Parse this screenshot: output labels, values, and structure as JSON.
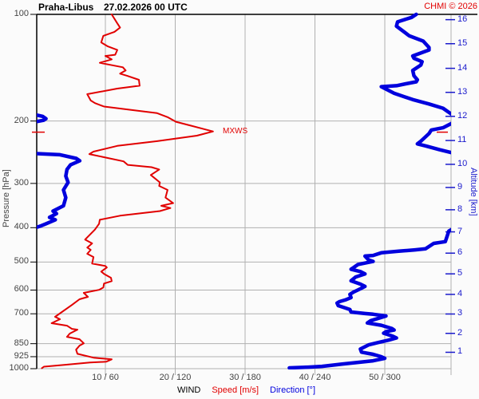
{
  "header": {
    "station": "Praha-Libus",
    "datetime": "27.02.2026 00 UTC",
    "copyright": "CHMI © 2026"
  },
  "axes": {
    "pressure": {
      "title": "Pressure [hPa]",
      "ticks": [
        100,
        200,
        300,
        400,
        500,
        600,
        700,
        850,
        925,
        1000
      ]
    },
    "altitude": {
      "title": "Altitude [km]",
      "ticks": [
        {
          "km": 1,
          "p": 899
        },
        {
          "km": 2,
          "p": 795
        },
        {
          "km": 3,
          "p": 701
        },
        {
          "km": 4,
          "p": 617
        },
        {
          "km": 5,
          "p": 540
        },
        {
          "km": 6,
          "p": 472
        },
        {
          "km": 7,
          "p": 411
        },
        {
          "km": 8,
          "p": 356
        },
        {
          "km": 9,
          "p": 308
        },
        {
          "km": 10,
          "p": 265
        },
        {
          "km": 11,
          "p": 227
        },
        {
          "km": 12,
          "p": 194
        },
        {
          "km": 13,
          "p": 166
        },
        {
          "km": 14,
          "p": 142
        },
        {
          "km": 15,
          "p": 121
        },
        {
          "km": 16,
          "p": 103.5
        }
      ]
    },
    "x": {
      "group_label": "WIND",
      "speed_label": "Speed [m/s]",
      "direction_label": "Direction [°]",
      "tick_labels": [
        "10 / 60",
        "20 / 120",
        "30 / 180",
        "40 / 240",
        "50 / 300"
      ],
      "speed_ticks": [
        10,
        20,
        30,
        40,
        50
      ],
      "direction_ticks": [
        60,
        120,
        180,
        240,
        300
      ]
    }
  },
  "annotations": {
    "mxws_label": "MXWS",
    "mxws_pressure": 215
  },
  "colors": {
    "speed": "#e10000",
    "direction": "#0000dd",
    "grid": "#b0b0b0",
    "axis": "#000000",
    "tick_text": "#444444",
    "altitude_text": "#1a1acc"
  },
  "chart_data": {
    "type": "line",
    "title": "Praha-Libus 27.02.2026 00 UTC",
    "ylabel": "Pressure [hPa]",
    "y2label": "Altitude [km]",
    "xlabel": "WIND Speed [m/s] / Direction [°]",
    "y_scale": "log",
    "ylim": [
      1000,
      100
    ],
    "speed_xlim": [
      0,
      59.5
    ],
    "direction_xlim": [
      0,
      357
    ],
    "legend_position": "bottom",
    "grid": true,
    "series": [
      {
        "name": "Speed [m/s]",
        "units": "m/s vs hPa",
        "points_p_v": [
          [
            100,
            10.9
          ],
          [
            106,
            11.7
          ],
          [
            109,
            12.1
          ],
          [
            112,
            11.3
          ],
          [
            115,
            9.7
          ],
          [
            120,
            9.4
          ],
          [
            123,
            10.3
          ],
          [
            126,
            11.7
          ],
          [
            130,
            11.4
          ],
          [
            131,
            10.0
          ],
          [
            134,
            10.9
          ],
          [
            137,
            9.2
          ],
          [
            141,
            12.5
          ],
          [
            144,
            12.9
          ],
          [
            147,
            12.1
          ],
          [
            149,
            13.1
          ],
          [
            153,
            14.8
          ],
          [
            159,
            14.9
          ],
          [
            162,
            11.7
          ],
          [
            168,
            7.4
          ],
          [
            175,
            7.9
          ],
          [
            178,
            8.5
          ],
          [
            182,
            9.8
          ],
          [
            186,
            13.7
          ],
          [
            190,
            17.4
          ],
          [
            195,
            18.9
          ],
          [
            201,
            20.1
          ],
          [
            206,
            22.2
          ],
          [
            214,
            25.4
          ],
          [
            220,
            23.1
          ],
          [
            228,
            17.4
          ],
          [
            235,
            11.7
          ],
          [
            244,
            8.3
          ],
          [
            248,
            7.7
          ],
          [
            253,
            9.8
          ],
          [
            260,
            12.6
          ],
          [
            266,
            13.2
          ],
          [
            270,
            16.6
          ],
          [
            274,
            17.7
          ],
          [
            284,
            16.5
          ],
          [
            298,
            17.8
          ],
          [
            305,
            17.7
          ],
          [
            313,
            18.9
          ],
          [
            329,
            18.6
          ],
          [
            341,
            19.7
          ],
          [
            347,
            18.0
          ],
          [
            352,
            19.3
          ],
          [
            359,
            17.8
          ],
          [
            370,
            12.1
          ],
          [
            380,
            9.2
          ],
          [
            390,
            9.1
          ],
          [
            405,
            8.5
          ],
          [
            432,
            7.1
          ],
          [
            443,
            8.1
          ],
          [
            455,
            7.4
          ],
          [
            462,
            7.9
          ],
          [
            474,
            7.4
          ],
          [
            484,
            8.3
          ],
          [
            505,
            8.1
          ],
          [
            513,
            10.0
          ],
          [
            518,
            10.2
          ],
          [
            532,
            9.4
          ],
          [
            540,
            9.8
          ],
          [
            554,
            10.8
          ],
          [
            566,
            10.9
          ],
          [
            575,
            9.8
          ],
          [
            590,
            9.7
          ],
          [
            599,
            9.1
          ],
          [
            611,
            6.9
          ],
          [
            627,
            7.5
          ],
          [
            637,
            6.3
          ],
          [
            661,
            5.2
          ],
          [
            714,
            2.8
          ],
          [
            725,
            3.5
          ],
          [
            744,
            2.3
          ],
          [
            756,
            4.5
          ],
          [
            772,
            5.2
          ],
          [
            776,
            6.0
          ],
          [
            796,
            4.9
          ],
          [
            813,
            4.5
          ],
          [
            826,
            6.3
          ],
          [
            848,
            6.9
          ],
          [
            861,
            6.3
          ],
          [
            884,
            5.8
          ],
          [
            908,
            6.0
          ],
          [
            931,
            8.3
          ],
          [
            941,
            10.9
          ],
          [
            956,
            10.1
          ],
          [
            961,
            7.8
          ],
          [
            976,
            4.1
          ],
          [
            987,
            1.2
          ],
          [
            997,
            0.9
          ]
        ]
      },
      {
        "name": "Direction [°]",
        "units": "deg vs hPa",
        "segments_p_deg": [
          [
            [
              100,
              327
            ],
            [
              102,
              323
            ],
            [
              105,
              311
            ],
            [
              108,
              310
            ],
            [
              113,
              318
            ],
            [
              115,
              321
            ],
            [
              119,
              333
            ],
            [
              124,
              338
            ],
            [
              126,
              338
            ],
            [
              131,
              324
            ],
            [
              133,
              325
            ],
            [
              136,
              332
            ],
            [
              139,
              331
            ],
            [
              144,
              324
            ],
            [
              149,
              325
            ],
            [
              153,
              328
            ],
            [
              155,
              327
            ],
            [
              157,
              318
            ],
            [
              159,
              310
            ],
            [
              160,
              297
            ],
            [
              167,
              308
            ],
            [
              174,
              324
            ],
            [
              179,
              338
            ],
            [
              184,
              350
            ],
            [
              191,
              357
            ],
            [
              192,
              360
            ]
          ],
          [
            [
              192,
              0
            ],
            [
              194,
              6
            ],
            [
              197,
              9
            ],
            [
              199,
              7
            ],
            [
              201,
              0
            ]
          ],
          [
            [
              201,
              360
            ],
            [
              209,
              350
            ],
            [
              212,
              340
            ],
            [
              217,
              338
            ],
            [
              228,
              331
            ],
            [
              232,
              328
            ],
            [
              235,
              335
            ],
            [
              241,
              347
            ],
            [
              245,
              356
            ],
            [
              247,
              360
            ]
          ],
          [
            [
              247,
              0
            ],
            [
              249,
              21
            ],
            [
              255,
              35
            ],
            [
              259,
              38
            ],
            [
              266,
              30
            ],
            [
              274,
              27
            ],
            [
              286,
              26
            ],
            [
              298,
              28
            ],
            [
              313,
              24
            ],
            [
              329,
              26
            ],
            [
              347,
              24
            ],
            [
              359,
              15
            ],
            [
              365,
              18
            ],
            [
              374,
              12
            ],
            [
              380,
              17
            ],
            [
              390,
              9
            ],
            [
              396,
              4
            ],
            [
              400,
              0
            ]
          ],
          [
            [
              400,
              360
            ],
            [
              409,
              355
            ],
            [
              438,
              352
            ],
            [
              443,
              342
            ],
            [
              459,
              335
            ],
            [
              462,
              326
            ],
            [
              466,
              312
            ],
            [
              471,
              297
            ],
            [
              479,
              290
            ],
            [
              481,
              283
            ],
            [
              493,
              286
            ],
            [
              498,
              290
            ],
            [
              508,
              277
            ],
            [
              519,
              273
            ],
            [
              524,
              271
            ],
            [
              532,
              279
            ],
            [
              540,
              283
            ],
            [
              551,
              275
            ],
            [
              565,
              271
            ],
            [
              577,
              279
            ],
            [
              586,
              283
            ],
            [
              595,
              279
            ],
            [
              608,
              273
            ],
            [
              617,
              270
            ],
            [
              630,
              271
            ],
            [
              640,
              266
            ],
            [
              647,
              261
            ],
            [
              653,
              259
            ],
            [
              664,
              260
            ],
            [
              674,
              266
            ],
            [
              681,
              270
            ],
            [
              692,
              271
            ],
            [
              699,
              283
            ],
            [
              702,
              290
            ],
            [
              710,
              301
            ],
            [
              732,
              288
            ],
            [
              743,
              285
            ],
            [
              754,
              297
            ],
            [
              770,
              306
            ],
            [
              778,
              308
            ],
            [
              786,
              301
            ],
            [
              794,
              299
            ],
            [
              810,
              307
            ],
            [
              819,
              310
            ],
            [
              831,
              303
            ],
            [
              844,
              294
            ],
            [
              857,
              286
            ],
            [
              880,
              279
            ],
            [
              898,
              280
            ],
            [
              911,
              290
            ],
            [
              925,
              297
            ],
            [
              935,
              300
            ],
            [
              950,
              290
            ],
            [
              970,
              264
            ],
            [
              985,
              246
            ],
            [
              990,
              234
            ],
            [
              995,
              218
            ]
          ]
        ]
      }
    ]
  }
}
